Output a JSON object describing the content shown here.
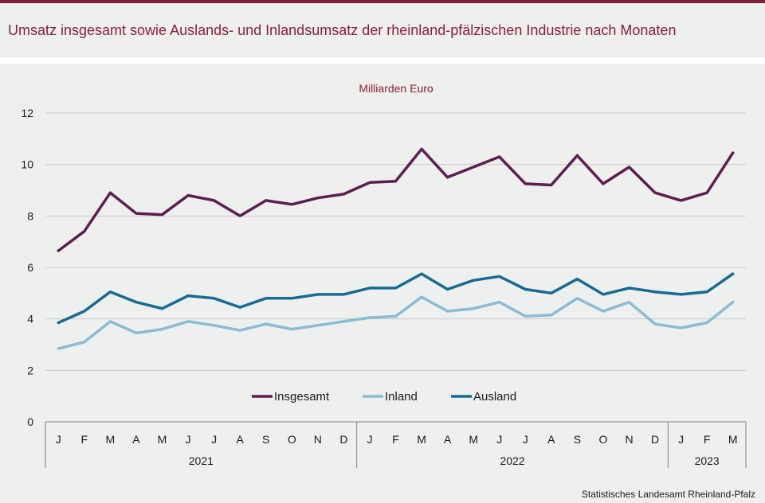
{
  "header": {
    "title": "Umsatz insgesamt sowie Auslands- und Inlandsumsatz der rheinland-pfälzischen Industrie nach Monaten"
  },
  "footer": {
    "source": "Statistisches Landesamt Rheinland-Pfalz"
  },
  "colors": {
    "accent": "#7a2139",
    "title": "#8c1d3c",
    "insgesamt": "#5e1e4f",
    "inland": "#8bbcd6",
    "ausland": "#176b96",
    "grid": "#c9c9c9",
    "panel": "#eef0ee"
  },
  "chart_data": {
    "type": "line",
    "title": "Umsatz insgesamt sowie Auslands- und Inlandsumsatz der rheinland-pfälzischen Industrie nach Monaten",
    "ylabel": "Milliarden Euro",
    "xlabel": "",
    "ylim": [
      0,
      12
    ],
    "yticks": [
      "0",
      "2",
      "4",
      "6",
      "8",
      "10",
      "12"
    ],
    "grid": true,
    "legend_position": "bottom-center",
    "categories": [
      "J",
      "F",
      "M",
      "A",
      "M",
      "J",
      "J",
      "A",
      "S",
      "O",
      "N",
      "D",
      "J",
      "F",
      "M",
      "A",
      "M",
      "J",
      "J",
      "A",
      "S",
      "O",
      "N",
      "D",
      "J",
      "F",
      "M"
    ],
    "years": [
      {
        "label": "2021",
        "months": 12
      },
      {
        "label": "2022",
        "months": 12
      },
      {
        "label": "2023",
        "months": 3
      }
    ],
    "series": [
      {
        "name": "Insgesamt",
        "color": "#5e1e4f",
        "values": [
          6.65,
          7.4,
          8.9,
          8.1,
          8.05,
          8.8,
          8.6,
          8.0,
          8.6,
          8.45,
          8.7,
          8.85,
          9.3,
          9.35,
          10.6,
          9.5,
          9.9,
          10.3,
          9.25,
          9.2,
          10.35,
          9.25,
          9.9,
          8.9,
          8.6,
          8.9,
          10.45
        ]
      },
      {
        "name": "Inland",
        "color": "#8bbcd6",
        "values": [
          2.85,
          3.1,
          3.9,
          3.45,
          3.6,
          3.9,
          3.75,
          3.55,
          3.8,
          3.6,
          3.75,
          3.9,
          4.05,
          4.1,
          4.85,
          4.3,
          4.4,
          4.65,
          4.1,
          4.15,
          4.8,
          4.3,
          4.65,
          3.8,
          3.65,
          3.85,
          4.65
        ]
      },
      {
        "name": "Ausland",
        "color": "#176b96",
        "values": [
          3.85,
          4.3,
          5.05,
          4.65,
          4.4,
          4.9,
          4.8,
          4.45,
          4.8,
          4.8,
          4.95,
          4.95,
          5.2,
          5.2,
          5.75,
          5.15,
          5.5,
          5.65,
          5.15,
          5.0,
          5.55,
          4.95,
          5.2,
          5.05,
          4.95,
          5.05,
          5.75
        ]
      }
    ]
  }
}
